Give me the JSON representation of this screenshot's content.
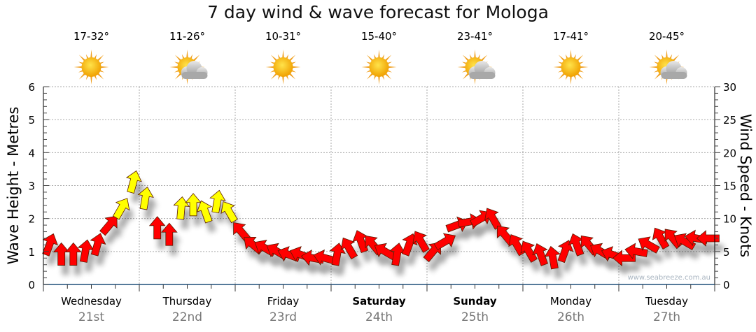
{
  "chart_data": {
    "type": "scatter",
    "title": "7 day wind & wave forecast for Mologa",
    "ylabel": "Wave Height - Metres",
    "y2label": "Wind Speed - Knots",
    "ylim": [
      0,
      6
    ],
    "y2lim": [
      0,
      30
    ],
    "yticks": [
      "0",
      "1",
      "2",
      "3",
      "4",
      "5",
      "6"
    ],
    "y2ticks": [
      "0",
      "5",
      "10",
      "15",
      "20",
      "25",
      "30"
    ],
    "watermark": "www.seabreeze.com.au",
    "grid": true,
    "days": [
      {
        "name": "Wednesday",
        "date": "21st",
        "temp": "17-32°",
        "icon": "sun-icon",
        "bold": false
      },
      {
        "name": "Thursday",
        "date": "22nd",
        "temp": "11-26°",
        "icon": "partly-cloudy-icon",
        "bold": false
      },
      {
        "name": "Friday",
        "date": "23rd",
        "temp": "10-31°",
        "icon": "sun-icon",
        "bold": false
      },
      {
        "name": "Saturday",
        "date": "24th",
        "temp": "15-40°",
        "icon": "sun-icon",
        "bold": true
      },
      {
        "name": "Sunday",
        "date": "25th",
        "temp": "23-41°",
        "icon": "partly-cloudy-icon",
        "bold": true
      },
      {
        "name": "Monday",
        "date": "26th",
        "temp": "17-41°",
        "icon": "sun-icon",
        "bold": false
      },
      {
        "name": "Tuesday",
        "date": "27th",
        "temp": "20-45°",
        "icon": "partly-cloudy-icon",
        "bold": false
      }
    ],
    "wind_knots": [
      6,
      4.5,
      4.5,
      5,
      6,
      9,
      11.5,
      15.5,
      13,
      8.5,
      7.5,
      11.5,
      12,
      11,
      12.5,
      11,
      8,
      6,
      5.5,
      5,
      4.5,
      4.5,
      4,
      4,
      4.5,
      5.5,
      6.5,
      6,
      5,
      4.5,
      6,
      6.5,
      5,
      6.5,
      9,
      9.5,
      10,
      10,
      7.5,
      6,
      5,
      4.5,
      4,
      5,
      6,
      6,
      5,
      4.5,
      4,
      5,
      6,
      7,
      7,
      6.5,
      7,
      7
    ],
    "wind_dir_deg": [
      20,
      0,
      0,
      10,
      15,
      40,
      30,
      15,
      10,
      0,
      0,
      5,
      0,
      340,
      10,
      330,
      320,
      310,
      300,
      300,
      290,
      290,
      280,
      285,
      10,
      330,
      340,
      320,
      300,
      10,
      20,
      330,
      40,
      60,
      70,
      80,
      60,
      330,
      320,
      330,
      330,
      340,
      350,
      20,
      340,
      320,
      300,
      290,
      270,
      280,
      300,
      330,
      320,
      300,
      280,
      270
    ],
    "yellow_threshold_knots": 11,
    "colors": {
      "strong": "#ffff00",
      "light": "#ff0000",
      "axis": "#1f4e79",
      "grid": "#aaaaaa",
      "date": "#777777"
    }
  }
}
